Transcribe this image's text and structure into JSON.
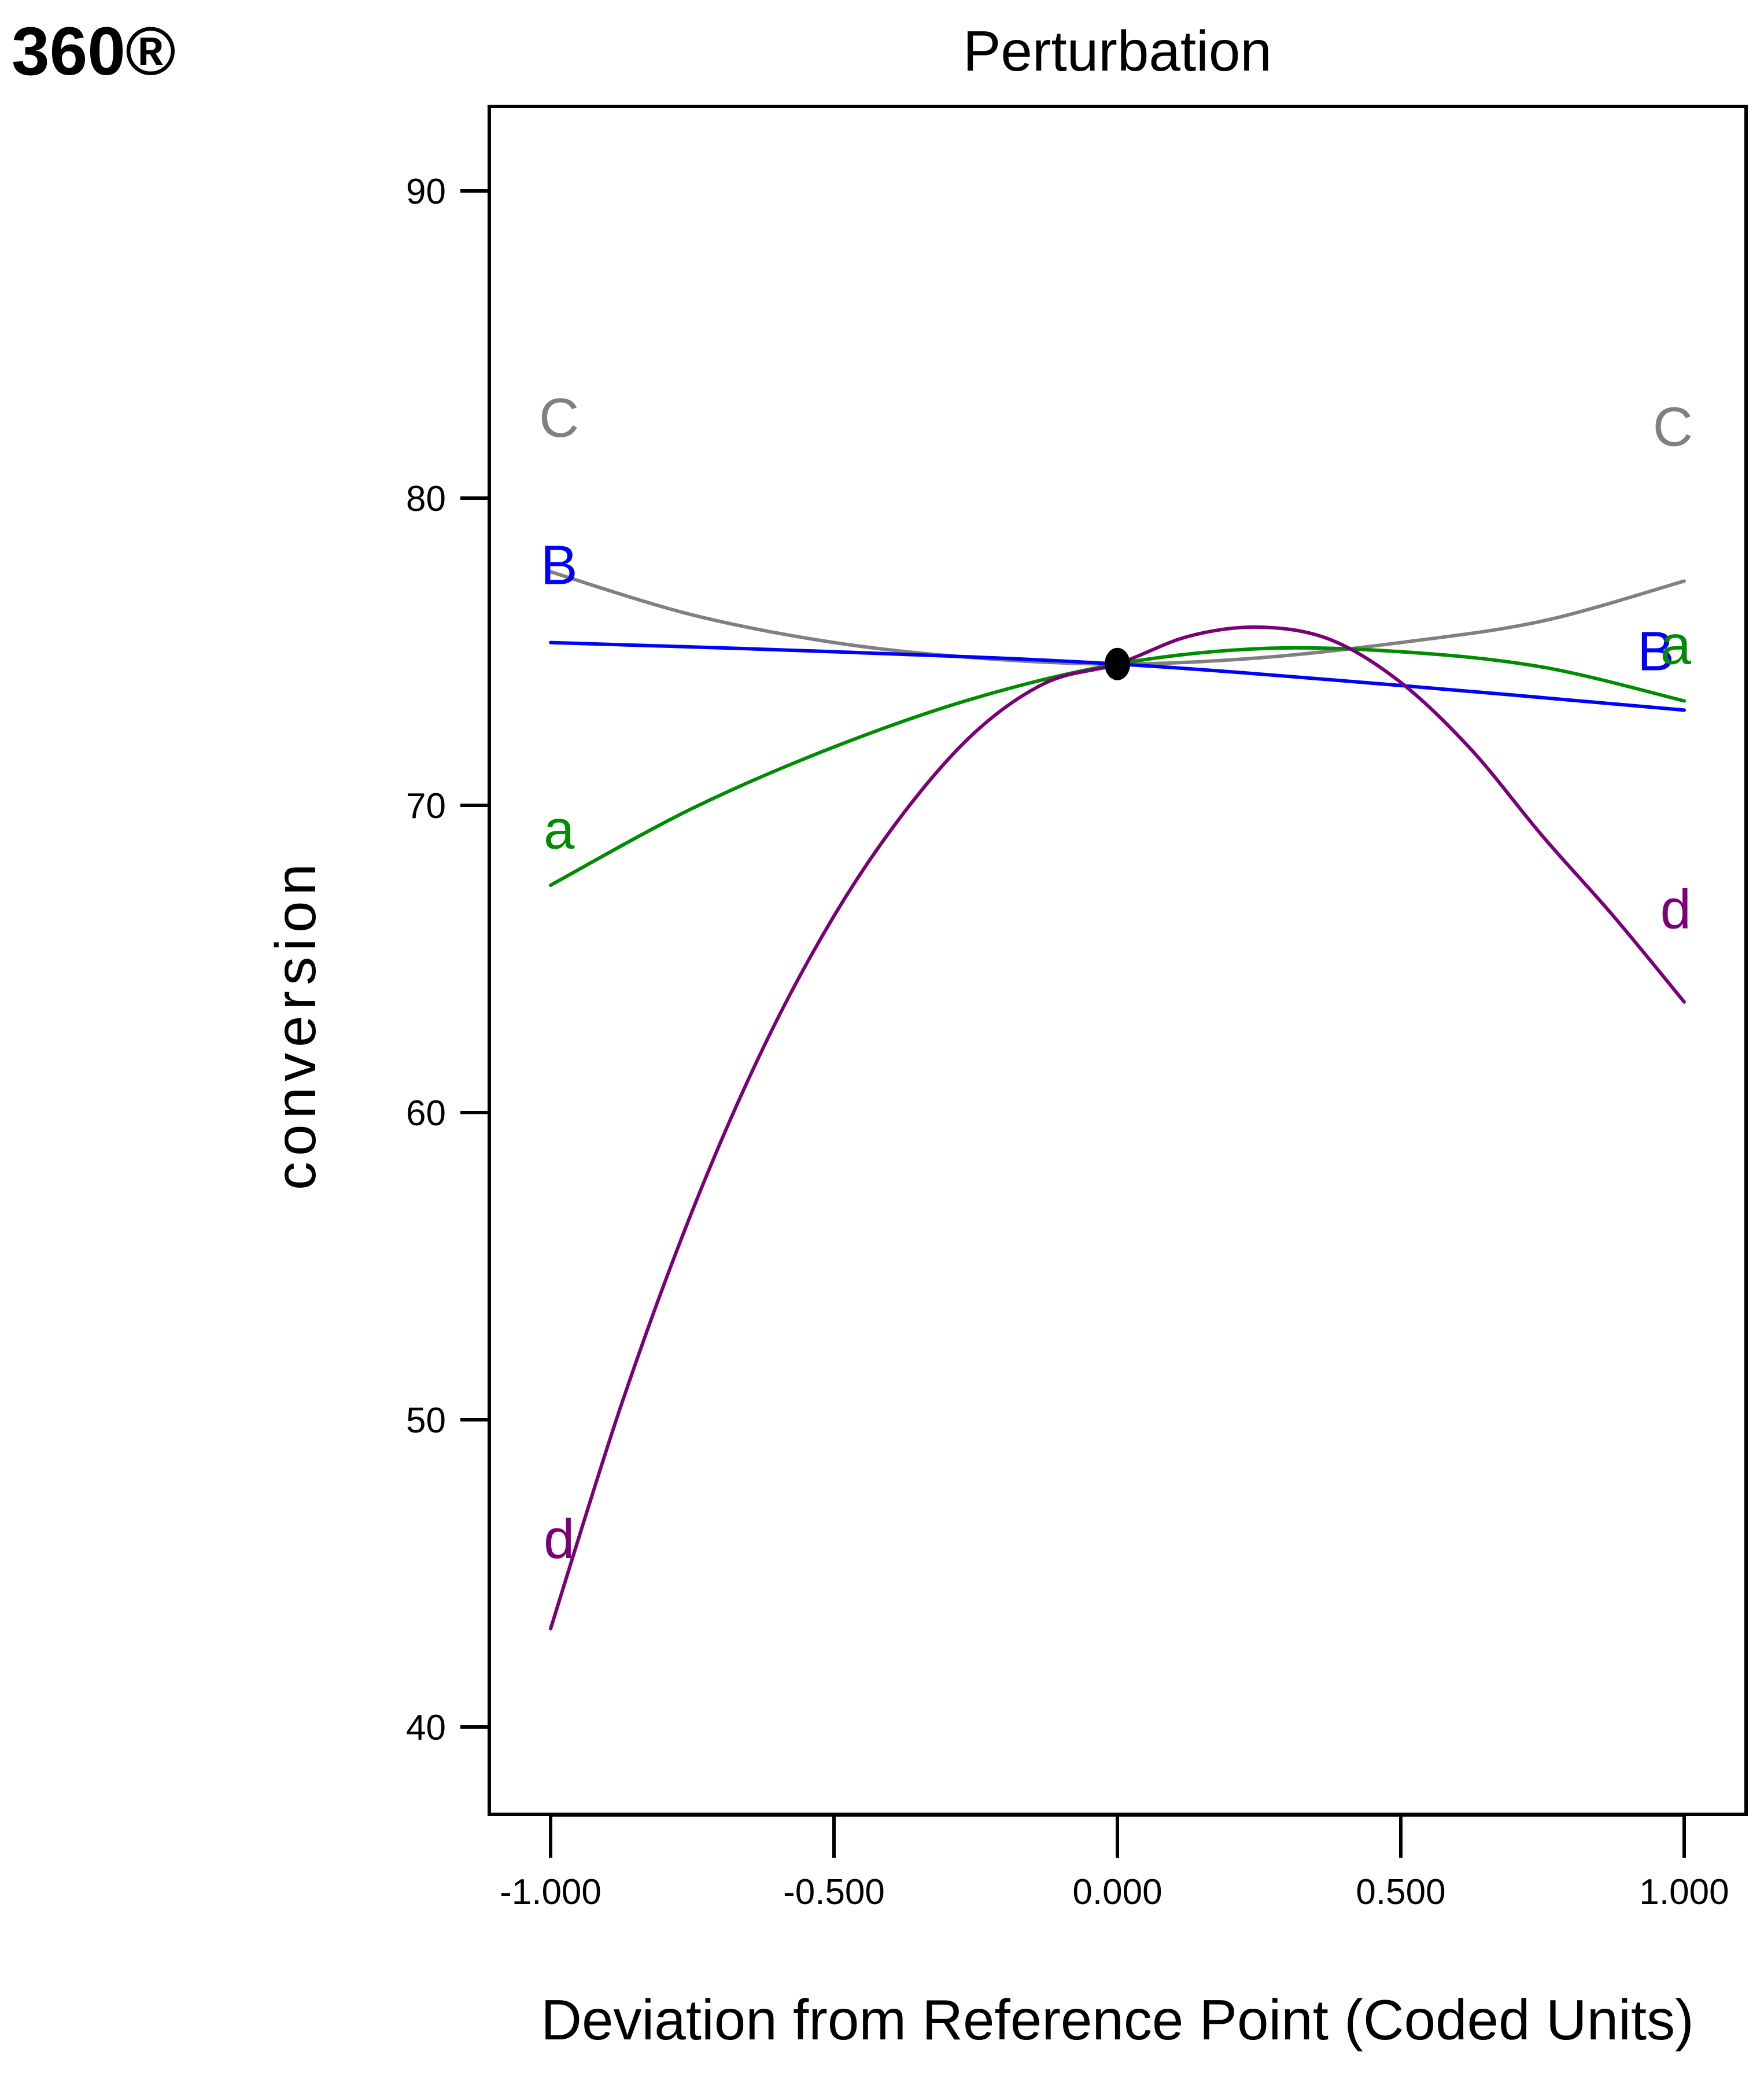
{
  "brand": "360®",
  "chart_data": {
    "type": "line",
    "title": "Perturbation",
    "xlabel": "Deviation from Reference Point (Coded Units)",
    "ylabel": "conversion",
    "xlim": [
      -1.1,
      1.1
    ],
    "ylim": [
      37,
      94
    ],
    "xticks": [
      -1,
      -0.5,
      0,
      0.5,
      1
    ],
    "xtick_labels": [
      "-1.000",
      "-0.500",
      "0.000",
      "0.500",
      "1.000"
    ],
    "yticks": [
      40,
      50,
      60,
      70,
      80,
      90
    ],
    "ytick_labels": [
      "40",
      "50",
      "60",
      "70",
      "80",
      "90"
    ],
    "grid": false,
    "reference_point": {
      "x": 0,
      "y": 74.6
    },
    "series": [
      {
        "name": "C",
        "color": "#808080",
        "x": [
          -1,
          -0.75,
          -0.5,
          -0.25,
          0,
          0.25,
          0.5,
          0.75,
          1
        ],
        "y": [
          77.6,
          76.2,
          75.3,
          74.8,
          74.6,
          74.8,
          75.3,
          76.0,
          77.3
        ]
      },
      {
        "name": "B",
        "color": "#0000ff",
        "x": [
          -1,
          -0.5,
          0,
          0.5,
          1
        ],
        "y": [
          75.3,
          75.0,
          74.6,
          73.9,
          73.1
        ]
      },
      {
        "name": "a",
        "color": "#008c00",
        "x": [
          -1,
          -0.75,
          -0.5,
          -0.25,
          0,
          0.25,
          0.5,
          0.75,
          1
        ],
        "y": [
          67.4,
          69.9,
          71.9,
          73.5,
          74.6,
          75.1,
          75.0,
          74.5,
          73.4
        ]
      },
      {
        "name": "d",
        "color": "#7a007a",
        "x": [
          -1,
          -0.875,
          -0.75,
          -0.625,
          -0.5,
          -0.375,
          -0.25,
          -0.125,
          0,
          0.125,
          0.25,
          0.375,
          0.5,
          0.625,
          0.75,
          0.875,
          1
        ],
        "y": [
          43.2,
          50.5,
          56.8,
          62.1,
          66.4,
          69.8,
          72.4,
          74.0,
          74.6,
          75.5,
          75.8,
          75.4,
          74.0,
          71.8,
          69.0,
          66.4,
          63.6
        ]
      }
    ]
  }
}
